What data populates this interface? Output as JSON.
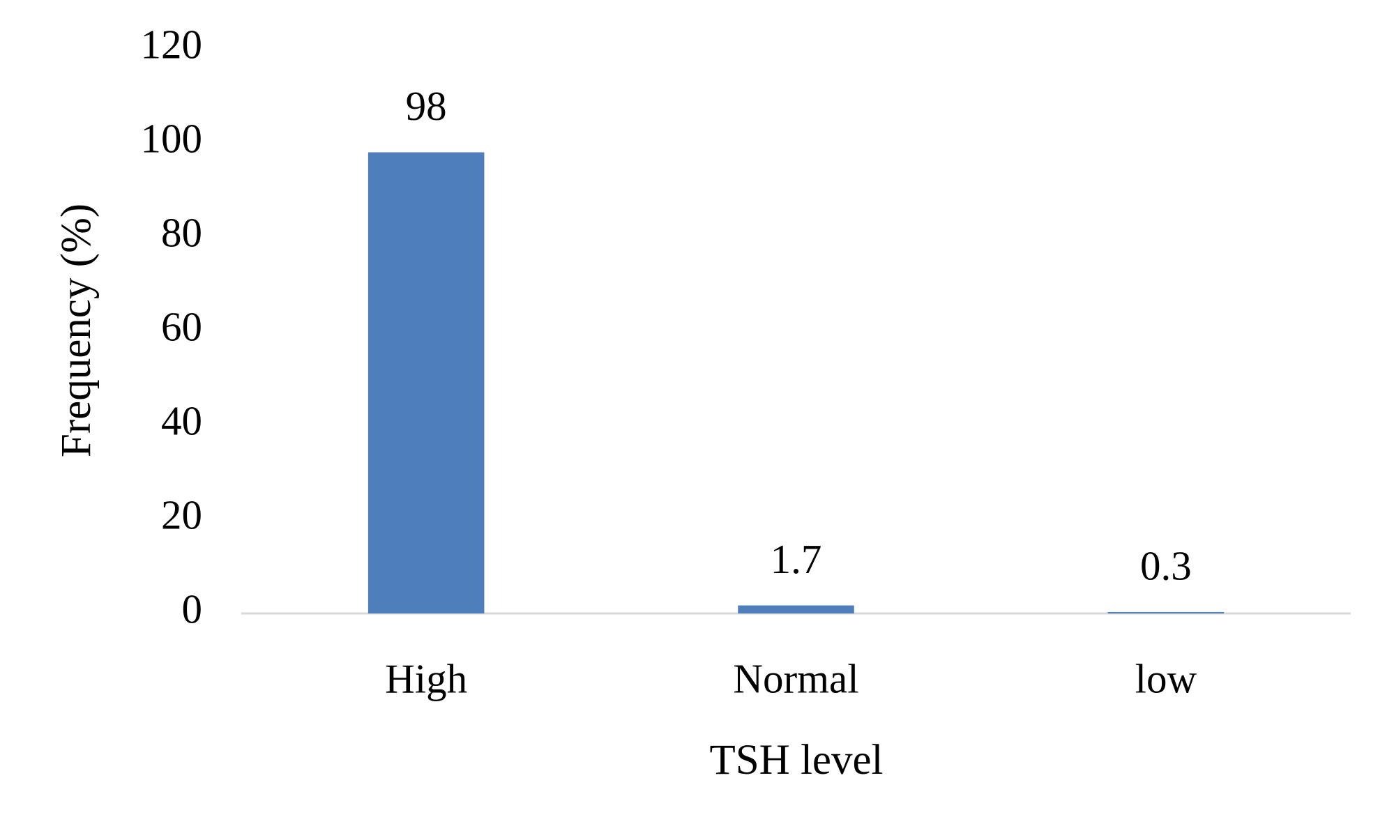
{
  "chart_data": {
    "type": "bar",
    "x_label": "TSH level",
    "y_label": "Frequency (%)",
    "categories": [
      "High",
      "Normal",
      "low"
    ],
    "values": [
      98,
      1.7,
      0.3
    ],
    "color": "#4f7fba",
    "ylim": [
      0,
      120
    ],
    "yticks": [
      0,
      20,
      40,
      60,
      80,
      100,
      120
    ],
    "grid": false,
    "data_labels": true
  }
}
